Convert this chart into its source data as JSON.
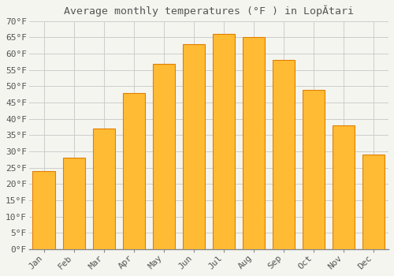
{
  "title": "Average monthly temperatures (°F ) in LopĂtari",
  "months": [
    "Jan",
    "Feb",
    "Mar",
    "Apr",
    "May",
    "Jun",
    "Jul",
    "Aug",
    "Sep",
    "Oct",
    "Nov",
    "Dec"
  ],
  "values": [
    24,
    28,
    37,
    48,
    57,
    63,
    66,
    65,
    58,
    49,
    38,
    29
  ],
  "bar_color": "#FFBB33",
  "bar_edge_color": "#E08000",
  "background_color": "#F5F5F0",
  "plot_bg_color": "#F5F5F0",
  "grid_color": "#CCCCCC",
  "text_color": "#555555",
  "ylim": [
    0,
    70
  ],
  "yticks": [
    0,
    5,
    10,
    15,
    20,
    25,
    30,
    35,
    40,
    45,
    50,
    55,
    60,
    65,
    70
  ],
  "title_fontsize": 9.5,
  "tick_fontsize": 8,
  "font_family": "monospace"
}
